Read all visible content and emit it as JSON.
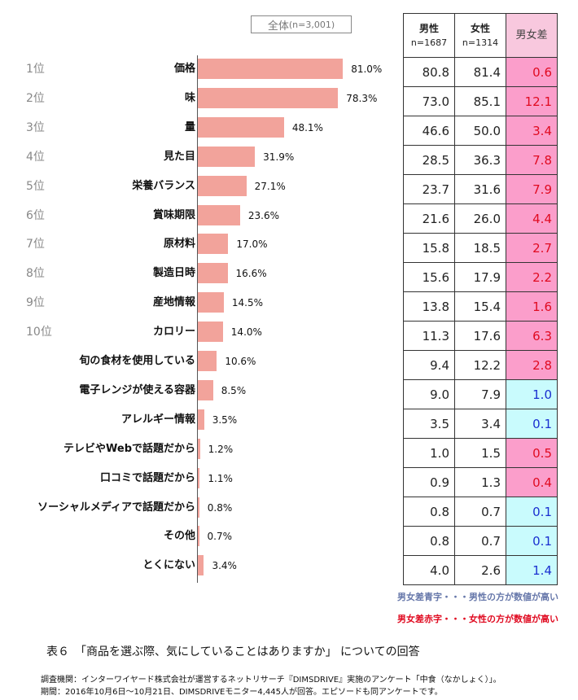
{
  "chart_data": {
    "type": "bar",
    "overall_label": "全体",
    "overall_n": "(n=3,001)",
    "ranks": [
      "1位",
      "2位",
      "3位",
      "4位",
      "5位",
      "6位",
      "7位",
      "8位",
      "9位",
      "10位",
      "",
      "",
      "",
      "",
      "",
      "",
      "",
      ""
    ],
    "categories": [
      "価格",
      "味",
      "量",
      "見た目",
      "栄養バランス",
      "賞味期限",
      "原材料",
      "製造日時",
      "産地情報",
      "カロリー",
      "旬の食材を使用している",
      "電子レンジが使える容器",
      "アレルギー情報",
      "テレビやWebで話題だから",
      "口コミで話題だから",
      "ソーシャルメディアで話題だから",
      "その他",
      "とくにない"
    ],
    "values": [
      81.0,
      78.3,
      48.1,
      31.9,
      27.1,
      23.6,
      17.0,
      16.6,
      14.5,
      14.0,
      10.6,
      8.5,
      3.5,
      1.2,
      1.1,
      0.8,
      0.7,
      3.4
    ],
    "value_labels": [
      "81.0%",
      "78.3%",
      "48.1%",
      "31.9%",
      "27.1%",
      "23.6%",
      "17.0%",
      "16.6%",
      "14.5%",
      "14.0%",
      "10.6%",
      "8.5%",
      "3.5%",
      "1.2%",
      "1.1%",
      "0.8%",
      "0.7%",
      "3.4%"
    ],
    "table": {
      "headers": [
        {
          "label": "男性",
          "n": "n=1687"
        },
        {
          "label": "女性",
          "n": "n=1314"
        },
        {
          "label": "男女差",
          "n": ""
        }
      ],
      "male": [
        "80.8",
        "73.0",
        "46.6",
        "28.5",
        "23.7",
        "21.6",
        "15.8",
        "15.6",
        "13.8",
        "11.3",
        "9.4",
        "9.0",
        "3.5",
        "1.0",
        "0.9",
        "0.8",
        "0.8",
        "4.0"
      ],
      "female": [
        "81.4",
        "85.1",
        "50.0",
        "36.3",
        "31.6",
        "26.0",
        "18.5",
        "17.9",
        "15.4",
        "17.6",
        "12.2",
        "7.9",
        "3.4",
        "1.5",
        "1.3",
        "0.7",
        "0.7",
        "2.6"
      ],
      "diff": [
        "0.6",
        "12.1",
        "3.4",
        "7.8",
        "7.9",
        "4.4",
        "2.7",
        "2.2",
        "1.6",
        "6.3",
        "2.8",
        "1.0",
        "0.1",
        "0.5",
        "0.4",
        "0.1",
        "0.1",
        "1.4"
      ],
      "diff_color": [
        "red",
        "red",
        "red",
        "red",
        "red",
        "red",
        "red",
        "red",
        "red",
        "red",
        "red",
        "blue",
        "blue",
        "red",
        "red",
        "blue",
        "blue",
        "blue"
      ]
    },
    "colors": {
      "bar": "#f2a39b",
      "red_bg": "#fb9ecb",
      "red_text": "#e00a20",
      "blue_bg": "#c9fbfd",
      "blue_text": "#1a2fd0"
    }
  },
  "legend": {
    "blue": "男女差青字・・・男性の方が数値が高い",
    "red": "男女差赤字・・・女性の方が数値が高い"
  },
  "caption": "表６　「商品を選ぶ際、気にしていることはありますか」 についての回答",
  "notes": [
    "調査機関：インターワイヤード株式会社が運営するネットリサーチ『DIMSDRIVE』実施のアンケート「中食（なかしょく）」。",
    "期間：2016年10月6日～10月21日、DIMSDRIVEモニター4,445人が回答。エピソードも同アンケートです。"
  ]
}
